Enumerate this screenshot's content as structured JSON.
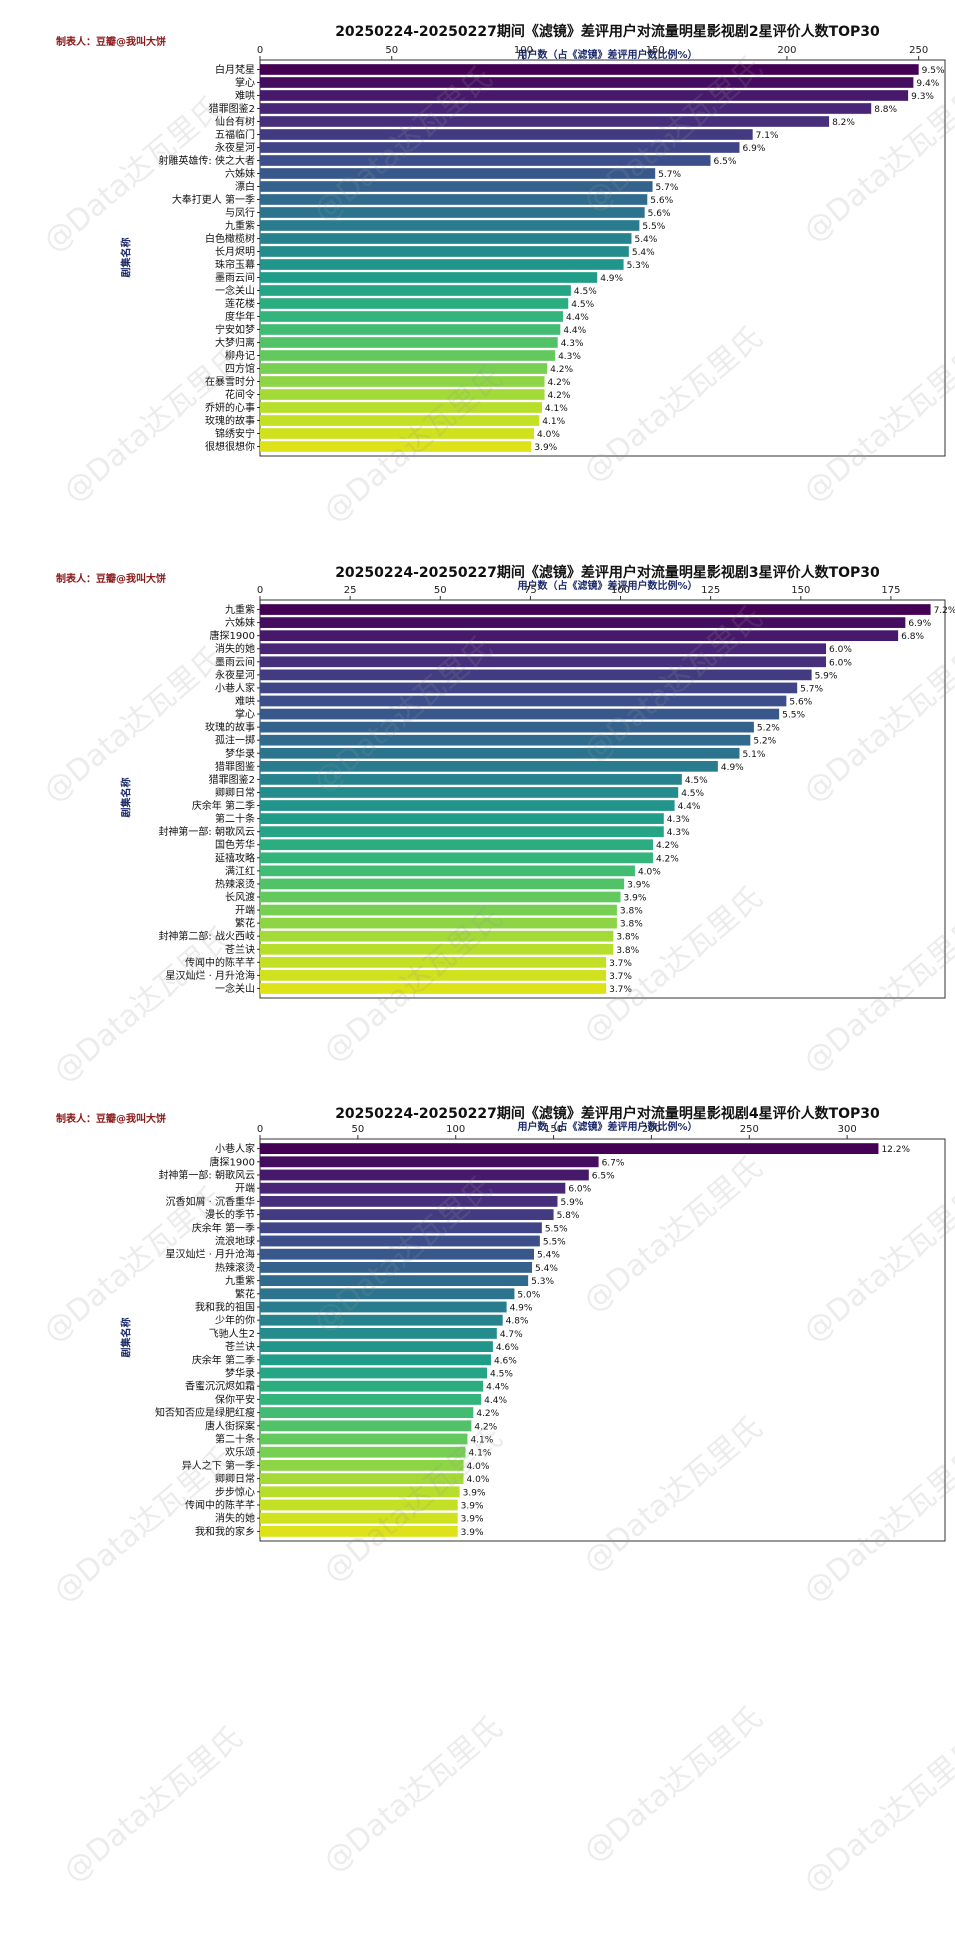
{
  "credit": "制表人：豆瓣@我叫大饼",
  "watermark": "@Data达瓦里氏",
  "colors": {
    "start": "#440154",
    "end": "#dde318"
  },
  "chart_data": [
    {
      "type": "bar",
      "title": "20250224-20250227期间《滤镜》差评用户对流量明星影视剧2星评价人数TOP30",
      "xlabel": "用户数（占《滤镜》差评用户数比例%）",
      "ylabel": "剧集名称",
      "xlim": [
        0,
        260
      ],
      "xticks": [
        0,
        50,
        100,
        150,
        200,
        250
      ],
      "categories": [
        "白月梵星",
        "掌心",
        "难哄",
        "猎罪图鉴2",
        "仙台有树",
        "五福临门",
        "永夜星河",
        "射雕英雄传: 侠之大者",
        "六姊妹",
        "漂白",
        "大奉打更人 第一季",
        "与凤行",
        "九重紫",
        "白色橄榄树",
        "长月烬明",
        "珠帘玉幕",
        "墨雨云间",
        "一念关山",
        "莲花楼",
        "度华年",
        "宁安如梦",
        "大梦归离",
        "柳舟记",
        "四方馆",
        "在暴雪时分",
        "花间令",
        "乔妍的心事",
        "玫瑰的故事",
        "锦绣安宁",
        "很想很想你"
      ],
      "values": [
        250,
        248,
        246,
        232,
        216,
        187,
        182,
        171,
        150,
        149,
        147,
        146,
        144,
        141,
        140,
        138,
        128,
        118,
        117,
        115,
        114,
        113,
        112,
        109,
        108,
        108,
        107,
        106,
        104,
        103
      ],
      "labels": [
        "9.5%",
        "9.4%",
        "9.3%",
        "8.8%",
        "8.2%",
        "7.1%",
        "6.9%",
        "6.5%",
        "5.7%",
        "5.7%",
        "5.6%",
        "5.6%",
        "5.5%",
        "5.4%",
        "5.4%",
        "5.3%",
        "4.9%",
        "4.5%",
        "4.5%",
        "4.4%",
        "4.4%",
        "4.3%",
        "4.3%",
        "4.2%",
        "4.2%",
        "4.2%",
        "4.1%",
        "4.1%",
        "4.0%",
        "3.9%"
      ]
    },
    {
      "type": "bar",
      "title": "20250224-20250227期间《滤镜》差评用户对流量明星影视剧3星评价人数TOP30",
      "xlabel": "用户数（占《滤镜》差评用户数比例%）",
      "ylabel": "剧集名称",
      "xlim": [
        0,
        190
      ],
      "xticks": [
        0,
        25,
        50,
        75,
        100,
        125,
        150,
        175
      ],
      "categories": [
        "九重紫",
        "六姊妹",
        "唐探1900",
        "消失的她",
        "墨雨云间",
        "永夜星河",
        "小巷人家",
        "难哄",
        "掌心",
        "玫瑰的故事",
        "孤注一掷",
        "梦华录",
        "猎罪图鉴",
        "猎罪图鉴2",
        "卿卿日常",
        "庆余年 第二季",
        "第二十条",
        "封神第一部: 朝歌风云",
        "国色芳华",
        "延禧攻略",
        "满江红",
        "热辣滚烫",
        "长风渡",
        "开端",
        "繁花",
        "封神第二部: 战火西岐",
        "苍兰诀",
        "传闻中的陈芊芊",
        "星汉灿烂 · 月升沧海",
        "一念关山"
      ],
      "values": [
        186,
        179,
        177,
        157,
        157,
        153,
        149,
        146,
        144,
        137,
        136,
        133,
        127,
        117,
        116,
        115,
        112,
        112,
        109,
        109,
        104,
        101,
        100,
        99,
        99,
        98,
        98,
        96,
        96,
        96
      ],
      "labels": [
        "7.2%",
        "6.9%",
        "6.8%",
        "6.0%",
        "6.0%",
        "5.9%",
        "5.7%",
        "5.6%",
        "5.5%",
        "5.2%",
        "5.2%",
        "5.1%",
        "4.9%",
        "4.5%",
        "4.5%",
        "4.4%",
        "4.3%",
        "4.3%",
        "4.2%",
        "4.2%",
        "4.0%",
        "3.9%",
        "3.9%",
        "3.8%",
        "3.8%",
        "3.8%",
        "3.8%",
        "3.7%",
        "3.7%",
        "3.7%"
      ]
    },
    {
      "type": "bar",
      "title": "20250224-20250227期间《滤镜》差评用户对流量明星影视剧4星评价人数TOP30",
      "xlabel": "用户数（占《滤镜》差评用户数比例%）",
      "ylabel": "剧集名称",
      "xlim": [
        0,
        350
      ],
      "xticks": [
        0,
        50,
        100,
        150,
        200,
        250,
        300
      ],
      "categories": [
        "小巷人家",
        "唐探1900",
        "封神第一部: 朝歌风云",
        "开端",
        "沉香如屑 · 沉香重华",
        "漫长的季节",
        "庆余年 第一季",
        "流浪地球",
        "星汉灿烂 · 月升沧海",
        "热辣滚烫",
        "九重紫",
        "繁花",
        "我和我的祖国",
        "少年的你",
        "飞驰人生2",
        "苍兰诀",
        "庆余年 第二季",
        "梦华录",
        "香蜜沉沉烬如霜",
        "保你平安",
        "知否知否应是绿肥红瘦",
        "唐人街探案",
        "第二十条",
        "欢乐颂",
        "异人之下 第一季",
        "卿卿日常",
        "步步惊心",
        "传闻中的陈芊芊",
        "消失的她",
        "我和我的家乡"
      ],
      "values": [
        316,
        173,
        168,
        156,
        152,
        150,
        144,
        143,
        140,
        139,
        137,
        130,
        126,
        124,
        121,
        119,
        118,
        116,
        114,
        113,
        109,
        108,
        106,
        105,
        104,
        104,
        102,
        101,
        101,
        101
      ],
      "labels": [
        "12.2%",
        "6.7%",
        "6.5%",
        "6.0%",
        "5.9%",
        "5.8%",
        "5.5%",
        "5.5%",
        "5.4%",
        "5.4%",
        "5.3%",
        "5.0%",
        "4.9%",
        "4.8%",
        "4.7%",
        "4.6%",
        "4.6%",
        "4.5%",
        "4.4%",
        "4.4%",
        "4.2%",
        "4.2%",
        "4.1%",
        "4.1%",
        "4.0%",
        "4.0%",
        "3.9%",
        "3.9%",
        "3.9%",
        "3.9%"
      ]
    }
  ]
}
